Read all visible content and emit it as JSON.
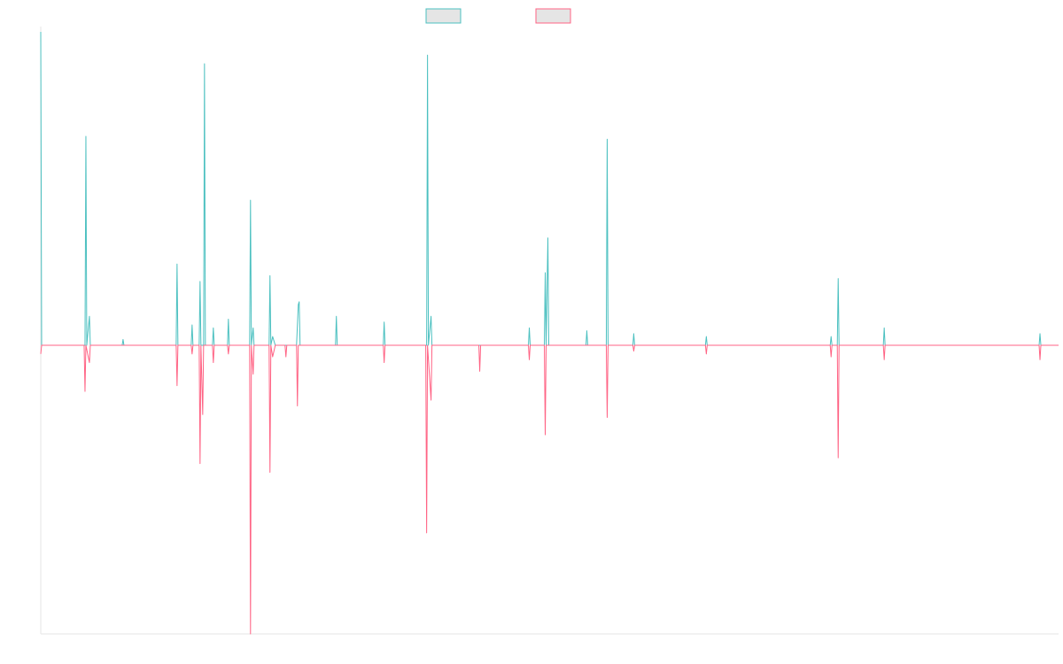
{
  "chart_data": {
    "type": "line",
    "title": "",
    "xlabel": "",
    "ylabel": "",
    "legend_position": "top-center",
    "grid": false,
    "y_range": [
      -1,
      1.08
    ],
    "series": [
      {
        "color": "#4BC0C0",
        "legend_fill": "#E5E5E5",
        "points": [
          [
            0,
            1.08
          ],
          [
            1,
            0
          ],
          [
            50,
            0
          ],
          [
            51,
            0.72
          ],
          [
            52,
            0
          ],
          [
            55,
            0.1
          ],
          [
            56,
            0
          ],
          [
            92,
            0
          ],
          [
            93,
            0.02
          ],
          [
            94,
            0
          ],
          [
            153,
            0
          ],
          [
            154,
            0.28
          ],
          [
            155,
            0
          ],
          [
            170,
            0
          ],
          [
            171,
            0.07
          ],
          [
            172,
            0
          ],
          [
            179,
            0
          ],
          [
            180,
            0.22
          ],
          [
            181,
            0
          ],
          [
            184,
            0
          ],
          [
            185,
            0.97
          ],
          [
            186,
            0
          ],
          [
            194,
            0
          ],
          [
            195,
            0.06
          ],
          [
            196,
            0
          ],
          [
            211,
            0
          ],
          [
            212,
            0.09
          ],
          [
            213,
            0
          ],
          [
            236,
            0
          ],
          [
            237,
            0.5
          ],
          [
            238,
            0
          ],
          [
            240,
            0.06
          ],
          [
            241,
            0
          ],
          [
            258,
            0
          ],
          [
            259,
            0.24
          ],
          [
            260,
            0
          ],
          [
            262,
            0.03
          ],
          [
            265,
            0
          ],
          [
            289,
            0
          ],
          [
            291,
            0.14
          ],
          [
            292,
            0.15
          ],
          [
            293,
            0
          ],
          [
            333,
            0
          ],
          [
            334,
            0.1
          ],
          [
            335,
            0
          ],
          [
            387,
            0
          ],
          [
            388,
            0.08
          ],
          [
            389,
            0
          ],
          [
            436,
            0
          ],
          [
            437,
            1.0
          ],
          [
            438,
            0
          ],
          [
            441,
            0.1
          ],
          [
            442,
            0
          ],
          [
            551,
            0
          ],
          [
            552,
            0.06
          ],
          [
            553,
            0
          ],
          [
            569,
            0
          ],
          [
            570,
            0.25
          ],
          [
            571,
            0
          ],
          [
            573,
            0.37
          ],
          [
            574,
            0
          ],
          [
            616,
            0
          ],
          [
            617,
            0.05
          ],
          [
            618,
            0
          ],
          [
            639,
            0
          ],
          [
            640,
            0.71
          ],
          [
            641,
            0
          ],
          [
            669,
            0
          ],
          [
            670,
            0.04
          ],
          [
            671,
            0
          ],
          [
            751,
            0
          ],
          [
            752,
            0.03
          ],
          [
            753,
            0
          ],
          [
            892,
            0
          ],
          [
            893,
            0.03
          ],
          [
            894,
            0
          ],
          [
            900,
            0
          ],
          [
            901,
            0.23
          ],
          [
            902,
            0
          ],
          [
            952,
            0
          ],
          [
            953,
            0.06
          ],
          [
            954,
            0
          ],
          [
            1128,
            0
          ],
          [
            1129,
            0.04
          ],
          [
            1130,
            0
          ],
          [
            1150,
            0
          ]
        ]
      },
      {
        "color": "#FF6384",
        "legend_fill": "#E5E5E5",
        "points": [
          [
            0,
            -0.03
          ],
          [
            1,
            0
          ],
          [
            49,
            0
          ],
          [
            50,
            -0.16
          ],
          [
            51,
            0
          ],
          [
            55,
            -0.06
          ],
          [
            56,
            0
          ],
          [
            153,
            0
          ],
          [
            154,
            -0.14
          ],
          [
            155,
            0
          ],
          [
            170,
            0
          ],
          [
            171,
            -0.03
          ],
          [
            172,
            0
          ],
          [
            179,
            0
          ],
          [
            180,
            -0.41
          ],
          [
            181,
            0
          ],
          [
            183,
            -0.24
          ],
          [
            184,
            0
          ],
          [
            194,
            0
          ],
          [
            195,
            -0.06
          ],
          [
            196,
            0
          ],
          [
            211,
            0
          ],
          [
            212,
            -0.03
          ],
          [
            213,
            0
          ],
          [
            236,
            0
          ],
          [
            237,
            -1.0
          ],
          [
            238,
            0
          ],
          [
            240,
            -0.1
          ],
          [
            241,
            0
          ],
          [
            258,
            0
          ],
          [
            259,
            -0.44
          ],
          [
            260,
            0
          ],
          [
            262,
            -0.04
          ],
          [
            265,
            0
          ],
          [
            276,
            0
          ],
          [
            277,
            -0.04
          ],
          [
            278,
            0
          ],
          [
            289,
            0
          ],
          [
            290,
            -0.21
          ],
          [
            291,
            0
          ],
          [
            387,
            0
          ],
          [
            388,
            -0.06
          ],
          [
            389,
            0
          ],
          [
            435,
            0
          ],
          [
            436,
            -0.65
          ],
          [
            437,
            0
          ],
          [
            441,
            -0.19
          ],
          [
            442,
            0
          ],
          [
            495,
            0
          ],
          [
            496,
            -0.09
          ],
          [
            497,
            0
          ],
          [
            551,
            0
          ],
          [
            552,
            -0.05
          ],
          [
            553,
            0
          ],
          [
            569,
            0
          ],
          [
            570,
            -0.31
          ],
          [
            571,
            0
          ],
          [
            639,
            0
          ],
          [
            640,
            -0.25
          ],
          [
            641,
            0
          ],
          [
            669,
            0
          ],
          [
            670,
            -0.02
          ],
          [
            671,
            0
          ],
          [
            751,
            0
          ],
          [
            752,
            -0.03
          ],
          [
            753,
            0
          ],
          [
            892,
            0
          ],
          [
            893,
            -0.04
          ],
          [
            894,
            0
          ],
          [
            900,
            0
          ],
          [
            901,
            -0.39
          ],
          [
            902,
            0
          ],
          [
            952,
            0
          ],
          [
            953,
            -0.05
          ],
          [
            954,
            0
          ],
          [
            1128,
            0
          ],
          [
            1129,
            -0.05
          ],
          [
            1130,
            0
          ],
          [
            1150,
            0
          ]
        ]
      }
    ]
  }
}
